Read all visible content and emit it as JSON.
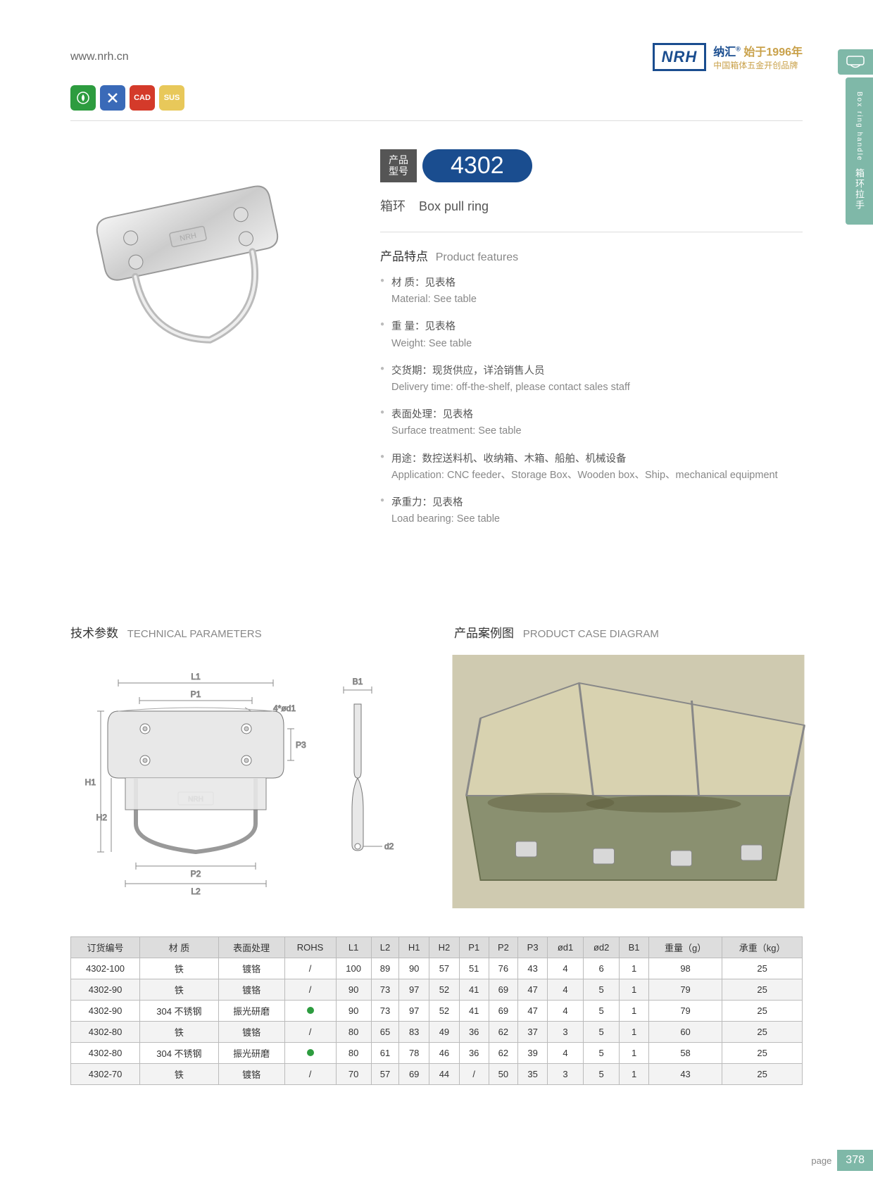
{
  "header": {
    "website": "www.nrh.cn",
    "logo": "NRH",
    "brand_line1_cn": "纳汇",
    "brand_line1_gold": "始于1996年",
    "brand_line2": "中国箱体五金开创品牌"
  },
  "side_tab": {
    "cn": "箱环拉手",
    "en": "Box ring handle"
  },
  "feature_icons": {
    "green": "♻",
    "blue": "✕",
    "red": "CAD",
    "yellow": "SUS",
    "colors": {
      "green": "#2d9c3f",
      "blue": "#3a6ab8",
      "red": "#d43a2a",
      "yellow": "#e8c85a"
    }
  },
  "model": {
    "label_cn1": "产品",
    "label_cn2": "型号",
    "number": "4302"
  },
  "subtitle": {
    "cn": "箱环",
    "en": "Box pull ring"
  },
  "features_head": {
    "cn": "产品特点",
    "en": "Product features"
  },
  "features": [
    {
      "cn": "材  质：见表格",
      "en": "Material: See table"
    },
    {
      "cn": "重  量：见表格",
      "en": "Weight: See table"
    },
    {
      "cn": "交货期：现货供应，详洽销售人员",
      "en": "Delivery time: off-the-shelf, please contact sales staff"
    },
    {
      "cn": "表面处理：见表格",
      "en": "Surface treatment:   See table"
    },
    {
      "cn": "用途：数控送料机、收纳箱、木箱、船舶、机械设备",
      "en": "Application: CNC feeder、Storage Box、Wooden box、Ship、mechanical equipment"
    },
    {
      "cn": "承重力：见表格",
      "en": "Load bearing: See table"
    }
  ],
  "sections": {
    "tech": {
      "cn": "技术参数",
      "en": "TECHNICAL PARAMETERS"
    },
    "case": {
      "cn": "产品案例图",
      "en": "PRODUCT CASE DIAGRAM"
    }
  },
  "diagram_labels": [
    "L1",
    "P1",
    "4*ød1",
    "P3",
    "H1",
    "H2",
    "P2",
    "L2",
    "B1",
    "d2"
  ],
  "table": {
    "columns": [
      "订货编号",
      "材    质",
      "表面处理",
      "ROHS",
      "L1",
      "L2",
      "H1",
      "H2",
      "P1",
      "P2",
      "P3",
      "ød1",
      "ød2",
      "B1",
      "重量（g）",
      "承重（kg）"
    ],
    "rows": [
      [
        "4302-100",
        "铁",
        "镀铬",
        "/",
        "100",
        "89",
        "90",
        "57",
        "51",
        "76",
        "43",
        "4",
        "6",
        "1",
        "98",
        "25"
      ],
      [
        "4302-90",
        "铁",
        "镀铬",
        "/",
        "90",
        "73",
        "97",
        "52",
        "41",
        "69",
        "47",
        "4",
        "5",
        "1",
        "79",
        "25"
      ],
      [
        "4302-90",
        "304 不锈钢",
        "振光研磨",
        "●",
        "90",
        "73",
        "97",
        "52",
        "41",
        "69",
        "47",
        "4",
        "5",
        "1",
        "79",
        "25"
      ],
      [
        "4302-80",
        "铁",
        "镀铬",
        "/",
        "80",
        "65",
        "83",
        "49",
        "36",
        "62",
        "37",
        "3",
        "5",
        "1",
        "60",
        "25"
      ],
      [
        "4302-80",
        "304 不锈钢",
        "振光研磨",
        "●",
        "80",
        "61",
        "78",
        "46",
        "36",
        "62",
        "39",
        "4",
        "5",
        "1",
        "58",
        "25"
      ],
      [
        "4302-70",
        "铁",
        "镀铬",
        "/",
        "70",
        "57",
        "69",
        "44",
        "/",
        "50",
        "35",
        "3",
        "5",
        "1",
        "43",
        "25"
      ]
    ],
    "header_bg": "#dddddd",
    "alt_row_bg": "#f3f3f3",
    "border_color": "#bbbbbb",
    "rohs_dot_color": "#2d9c3f"
  },
  "page": {
    "label": "page",
    "number": "378"
  },
  "colors": {
    "brand_blue": "#1a4d8f",
    "brand_gold": "#c9a14a",
    "teal": "#7fb8a8",
    "text_gray": "#555555",
    "light_gray": "#888888"
  }
}
